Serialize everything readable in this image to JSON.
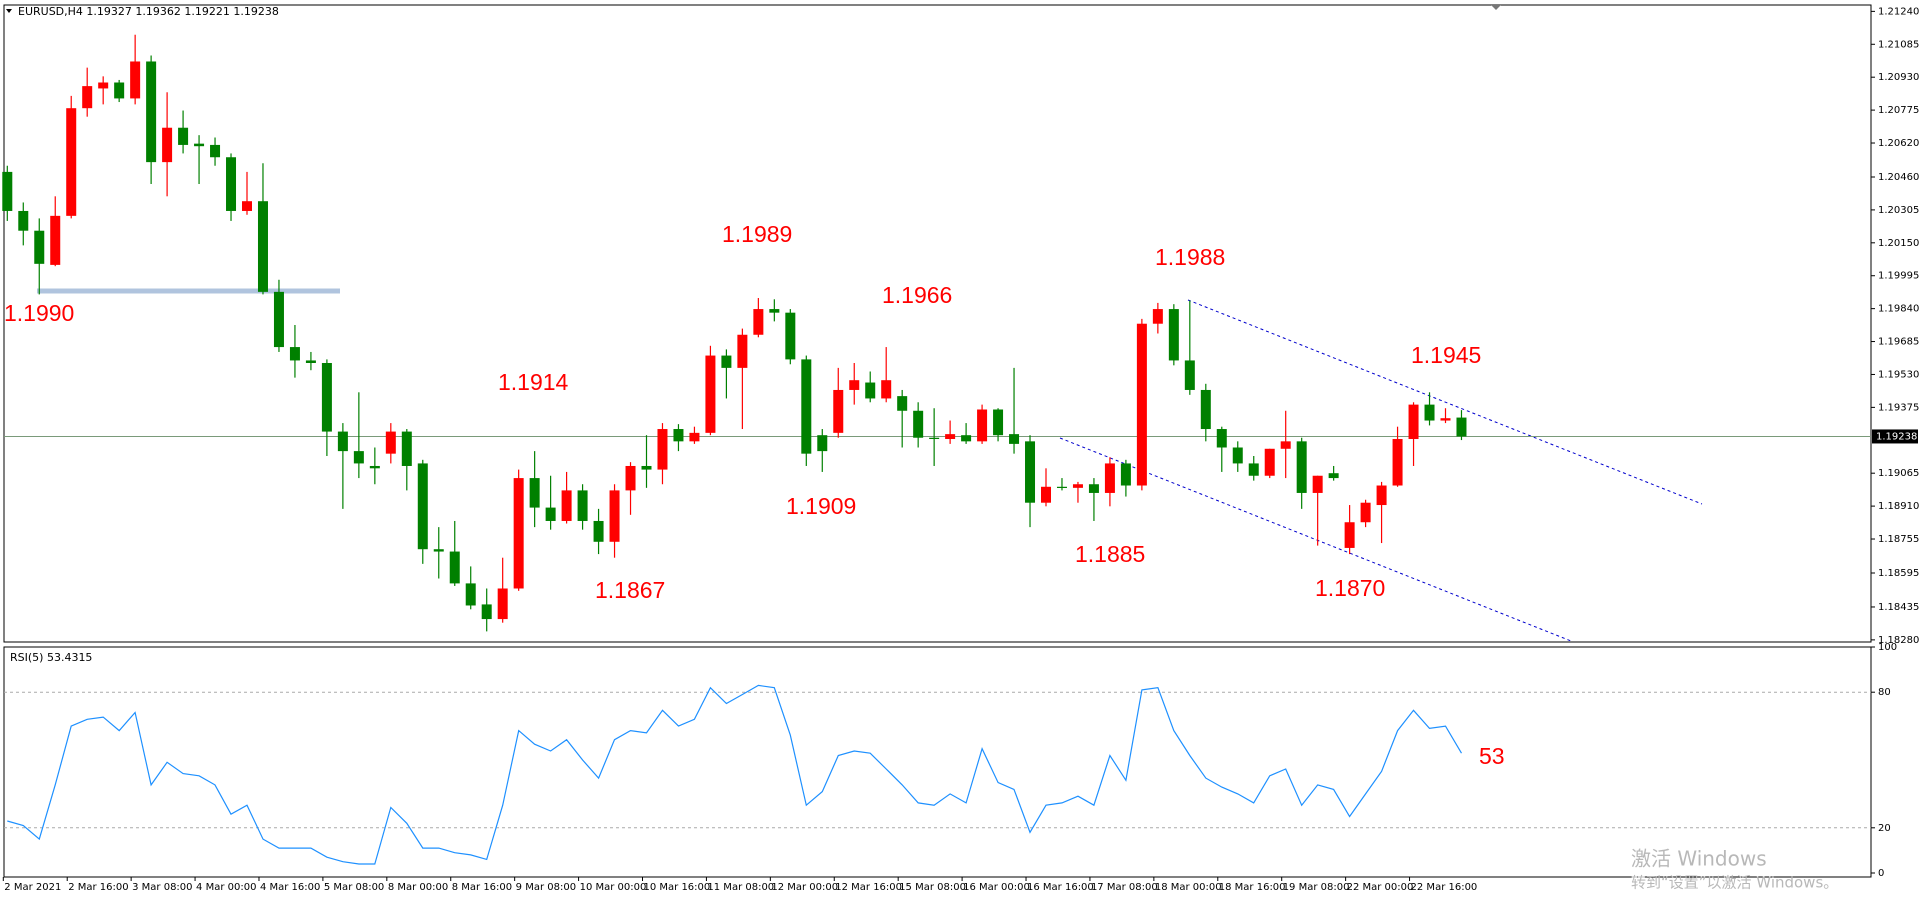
{
  "chart_data": [
    {
      "type": "candlestick",
      "title": "EURUSD,H4  1.19327 1.19362 1.19221 1.19238",
      "categories": [
        "2 Mar 2021",
        null,
        null,
        null,
        "2 Mar 16:00",
        null,
        null,
        null,
        "3 Mar 08:00",
        null,
        null,
        null,
        "4 Mar 00:00",
        null,
        null,
        null,
        "4 Mar 16:00",
        null,
        null,
        null,
        "5 Mar 08:00",
        null,
        null,
        null,
        "8 Mar 00:00",
        null,
        null,
        null,
        "8 Mar 16:00",
        null,
        null,
        null,
        "9 Mar 08:00",
        null,
        null,
        null,
        "10 Mar 00:00",
        null,
        null,
        null,
        "10 Mar 16:00",
        null,
        null,
        null,
        "11 Mar 08:00",
        null,
        null,
        null,
        "12 Mar 00:00",
        null,
        null,
        null,
        "12 Mar 16:00",
        null,
        null,
        null,
        "15 Mar 08:00",
        null,
        null,
        null,
        "16 Mar 00:00",
        null,
        null,
        null,
        "16 Mar 16:00",
        null,
        null,
        null,
        "17 Mar 08:00",
        null,
        null,
        null,
        "18 Mar 00:00",
        null,
        null,
        null,
        "18 Mar 16:00",
        null,
        null,
        null,
        "19 Mar 08:00",
        null,
        null,
        null,
        "22 Mar 00:00",
        null,
        null,
        null,
        "22 Mar 16:00",
        null,
        null,
        null
      ],
      "open": [
        1.20484,
        1.203,
        1.20207,
        1.20046,
        1.20277,
        1.20784,
        1.20877,
        1.20905,
        1.2083,
        1.21004,
        1.2053,
        1.20692,
        1.20617,
        1.20611,
        1.20553,
        1.203,
        1.20346,
        1.19919,
        1.19659,
        1.19596,
        1.19584,
        1.19261,
        1.19169,
        1.19099,
        1.19157,
        1.19261,
        1.19111,
        1.18707,
        1.18696,
        1.18546,
        1.18447,
        1.18378,
        1.18522,
        1.19042,
        1.18903,
        1.1884,
        1.18984,
        1.1884,
        1.18742,
        1.18984,
        1.19099,
        1.19082,
        1.19273,
        1.19215,
        1.19255,
        1.19619,
        1.19561,
        1.19717,
        1.19838,
        1.19821,
        1.19601,
        1.19244,
        1.19255,
        1.19457,
        1.19492,
        1.19417,
        1.19428,
        1.19359,
        1.19232,
        1.19226,
        1.19244,
        1.19215,
        1.19365,
        1.19249,
        1.19215,
        1.18926,
        1.19001,
        1.18996,
        1.19013,
        1.18972,
        1.19111,
        1.19007,
        1.19769,
        1.19838,
        1.19596,
        1.19457,
        1.19273,
        1.19186,
        1.19111,
        1.19053,
        1.1918,
        1.19215,
        1.18972,
        1.19065,
        1.18713,
        1.18834,
        1.18915,
        1.19007,
        1.19226,
        1.19388,
        1.19313,
        1.19327
      ],
      "high": [
        1.20513,
        1.2034,
        1.20265,
        1.20369,
        1.20842,
        1.20975,
        1.20934,
        1.20917,
        1.2113,
        1.21032,
        1.20859,
        1.20773,
        1.20657,
        1.20646,
        1.20571,
        1.20484,
        1.20525,
        1.19976,
        1.19763,
        1.19636,
        1.19601,
        1.19301,
        1.19446,
        1.19186,
        1.19301,
        1.19273,
        1.19128,
        1.18811,
        1.1884,
        1.18626,
        1.18522,
        1.18667,
        1.19082,
        1.19169,
        1.19053,
        1.19071,
        1.19013,
        1.18897,
        1.19013,
        1.19117,
        1.19244,
        1.19301,
        1.19296,
        1.19284,
        1.19665,
        1.19648,
        1.19746,
        1.1989,
        1.19884,
        1.19838,
        1.19619,
        1.19273,
        1.19561,
        1.19584,
        1.19544,
        1.19659,
        1.19457,
        1.19399,
        1.19371,
        1.19313,
        1.19301,
        1.19388,
        1.19371,
        1.19561,
        1.19244,
        1.19088,
        1.19042,
        1.19024,
        1.19042,
        1.1914,
        1.19128,
        1.19792,
        1.19867,
        1.19861,
        1.19878,
        1.19486,
        1.19284,
        1.19215,
        1.19146,
        1.1918,
        1.19359,
        1.19232,
        1.19053,
        1.19099,
        1.18915,
        1.1894,
        1.19024,
        1.19284,
        1.19399,
        1.19446,
        1.19371,
        1.19362
      ],
      "low": [
        1.20253,
        1.20138,
        1.19907,
        1.2004,
        1.20265,
        1.20744,
        1.20802,
        1.20813,
        1.20802,
        1.20427,
        1.20369,
        1.20571,
        1.20427,
        1.20513,
        1.20253,
        1.20282,
        1.19907,
        1.19636,
        1.19515,
        1.1955,
        1.19146,
        1.18897,
        1.19042,
        1.19013,
        1.19111,
        1.18984,
        1.18638,
        1.18569,
        1.18534,
        1.18424,
        1.1832,
        1.18361,
        1.18511,
        1.18811,
        1.18799,
        1.18828,
        1.18799,
        1.18684,
        1.18667,
        1.18869,
        1.18996,
        1.19013,
        1.19169,
        1.19203,
        1.19244,
        1.19417,
        1.19273,
        1.19705,
        1.1978,
        1.19578,
        1.19099,
        1.19071,
        1.19232,
        1.19388,
        1.19399,
        1.19399,
        1.19186,
        1.19186,
        1.19099,
        1.19203,
        1.19203,
        1.19203,
        1.19215,
        1.19157,
        1.18811,
        1.18909,
        1.18984,
        1.18926,
        1.1884,
        1.18909,
        1.18955,
        1.18984,
        1.19723,
        1.19573,
        1.19434,
        1.19215,
        1.19071,
        1.19071,
        1.1903,
        1.19042,
        1.19042,
        1.18897,
        1.18724,
        1.1903,
        1.18684,
        1.18811,
        1.18736,
        1.19001,
        1.19099,
        1.1929,
        1.19301,
        1.19221
      ],
      "close": [
        1.203,
        1.20207,
        1.20051,
        1.20277,
        1.20784,
        1.20888,
        1.20905,
        1.2083,
        1.21004,
        1.2053,
        1.20692,
        1.20611,
        1.20605,
        1.20553,
        1.203,
        1.20346,
        1.19919,
        1.19659,
        1.19596,
        1.19584,
        1.19261,
        1.19169,
        1.19111,
        1.19088,
        1.19261,
        1.19099,
        1.18707,
        1.18696,
        1.18546,
        1.18442,
        1.18378,
        1.18522,
        1.19042,
        1.18903,
        1.1884,
        1.18984,
        1.1884,
        1.18742,
        1.18984,
        1.19099,
        1.19082,
        1.19273,
        1.19215,
        1.19255,
        1.19619,
        1.19561,
        1.19717,
        1.19838,
        1.19821,
        1.19601,
        1.19157,
        1.19169,
        1.19457,
        1.19503,
        1.19417,
        1.19503,
        1.19359,
        1.19232,
        1.19226,
        1.19249,
        1.19215,
        1.19365,
        1.19244,
        1.19203,
        1.18926,
        1.19001,
        1.18996,
        1.19013,
        1.18972,
        1.19111,
        1.19007,
        1.19769,
        1.19838,
        1.19596,
        1.19457,
        1.19273,
        1.19186,
        1.19111,
        1.19053,
        1.1918,
        1.19215,
        1.18972,
        1.19053,
        1.19042,
        1.18834,
        1.18926,
        1.19007,
        1.19226,
        1.19388,
        1.19313,
        1.19324,
        1.19238
      ],
      "up_color": "#ff0000",
      "down_color": "#008000",
      "ylim": [
        1.1827,
        1.2127
      ],
      "yticks": [
        {
          "value": 1.2124,
          "label": "1.21240"
        },
        1.21085,
        {
          "value": 1.2093,
          "label": "1.20930"
        },
        1.20775,
        {
          "value": 1.2062,
          "label": "1.20620"
        },
        {
          "value": 1.2046,
          "label": "1.20460"
        },
        1.20305,
        {
          "value": 1.2015,
          "label": "1.20150"
        },
        1.19995,
        {
          "value": 1.1984,
          "label": "1.19840"
        },
        1.19685,
        {
          "value": 1.1953,
          "label": "1.19530"
        },
        1.19375,
        1.19065,
        {
          "value": 1.1891,
          "label": "1.18910"
        },
        1.18755,
        1.18595,
        1.18435,
        {
          "value": 1.1828,
          "label": "1.18280"
        }
      ],
      "current_price": 1.19238,
      "annotations": [
        "1.1990",
        "1.1914",
        "1.1989",
        "1.1966",
        "1.1909",
        "1.1867",
        "1.1988",
        "1.1885",
        "1.1945",
        "1.1870"
      ]
    },
    {
      "type": "line",
      "title": "RSI(5) 53.4315",
      "values": [
        23,
        21,
        15,
        39,
        65,
        68,
        69,
        63,
        71,
        39,
        49,
        44,
        43,
        39,
        26,
        30,
        15,
        11,
        11,
        11,
        7,
        5,
        4,
        4,
        29,
        22,
        11,
        11,
        9,
        8,
        6,
        30,
        63,
        57,
        54,
        59,
        50,
        42,
        59,
        63,
        62,
        72,
        65,
        68,
        82,
        75,
        79,
        83,
        82,
        61,
        30,
        36,
        52,
        54,
        53,
        46,
        39,
        31,
        30,
        35,
        31,
        55,
        40,
        37,
        18,
        30,
        31,
        34,
        30,
        52,
        41,
        81,
        82,
        63,
        52,
        42,
        38,
        35,
        31,
        43,
        46,
        30,
        39,
        37,
        25,
        35,
        45,
        63,
        72,
        64,
        65,
        53
      ],
      "color": "#1e90ff",
      "ylim": [
        0,
        100
      ],
      "yticks": [
        0,
        20,
        80,
        100
      ],
      "grid": true,
      "annotations": [
        "53"
      ]
    }
  ],
  "watermark": [
    "激活 Windows",
    "转到“设置”以激活 Windows。"
  ]
}
